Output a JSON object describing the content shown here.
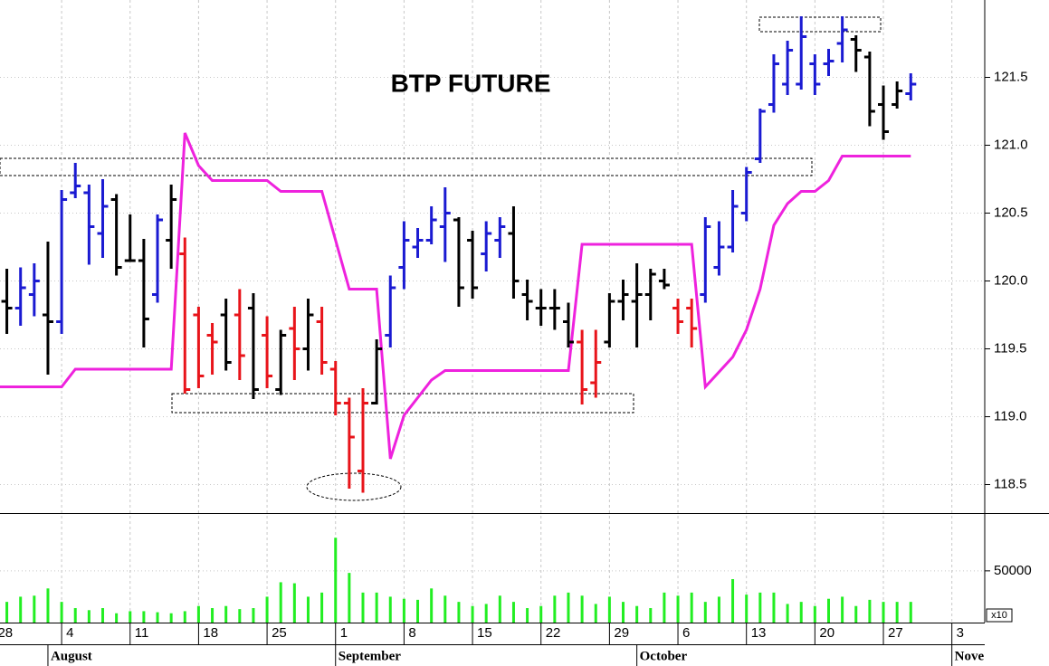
{
  "chart_data": {
    "type": "ohlc",
    "title": "BTP FUTURE",
    "x": [
      1,
      2,
      3,
      4,
      5,
      6,
      7,
      8,
      9,
      10,
      11,
      12,
      13,
      14,
      15,
      16,
      17,
      18,
      19,
      20,
      21,
      22,
      23,
      24,
      25,
      26,
      27,
      28,
      29,
      30,
      31,
      32,
      33,
      34,
      35,
      36,
      37,
      38,
      39,
      40,
      41,
      42,
      43,
      44,
      45,
      46,
      47,
      48,
      49,
      50,
      51,
      52,
      53,
      54,
      55,
      56,
      57,
      58,
      59,
      60,
      61,
      62,
      63,
      64,
      65,
      66,
      67
    ],
    "high": [
      120.09,
      120.1,
      120.13,
      120.29,
      120.67,
      120.87,
      120.71,
      120.75,
      120.64,
      120.49,
      120.31,
      120.49,
      120.71,
      120.32,
      119.81,
      119.69,
      119.87,
      119.94,
      119.91,
      119.74,
      119.64,
      119.81,
      119.87,
      119.81,
      119.41,
      119.14,
      119.21,
      119.57,
      120.04,
      120.44,
      120.39,
      120.55,
      120.69,
      120.47,
      120.37,
      120.44,
      120.47,
      120.55,
      120.01,
      119.94,
      119.94,
      119.84,
      119.64,
      119.64,
      119.91,
      120.01,
      120.13,
      120.09,
      120.09,
      119.87,
      119.87,
      120.47,
      120.44,
      120.67,
      120.84,
      121.27,
      121.67,
      121.77,
      121.95,
      121.67,
      121.71,
      121.95,
      121.81,
      121.69,
      121.44,
      121.47,
      121.53
    ],
    "low": [
      119.61,
      119.67,
      119.74,
      119.31,
      119.61,
      120.61,
      120.12,
      120.17,
      120.04,
      120.14,
      119.51,
      119.84,
      120.09,
      119.17,
      119.21,
      119.31,
      119.34,
      119.27,
      119.13,
      119.21,
      119.16,
      119.27,
      119.34,
      119.31,
      119.01,
      118.47,
      118.44,
      119.09,
      119.51,
      119.94,
      120.17,
      120.27,
      120.14,
      119.81,
      119.87,
      120.07,
      120.17,
      119.87,
      119.71,
      119.67,
      119.64,
      119.51,
      119.09,
      119.14,
      119.51,
      119.71,
      119.51,
      119.71,
      119.94,
      119.61,
      119.51,
      119.84,
      120.04,
      120.21,
      120.44,
      120.87,
      121.24,
      121.37,
      121.41,
      121.37,
      121.51,
      121.61,
      121.54,
      121.14,
      121.04,
      121.27,
      121.33
    ],
    "open": [
      119.85,
      119.8,
      119.9,
      119.75,
      119.7,
      120.65,
      120.65,
      120.35,
      120.6,
      120.15,
      120.15,
      119.9,
      120.3,
      120.2,
      119.75,
      119.6,
      119.75,
      119.75,
      119.8,
      119.6,
      119.2,
      119.65,
      119.5,
      119.7,
      119.35,
      119.1,
      118.6,
      119.1,
      119.6,
      120.1,
      120.25,
      120.3,
      120.4,
      120.45,
      120.3,
      120.2,
      120.3,
      120.35,
      119.9,
      119.8,
      119.8,
      119.7,
      119.55,
      119.25,
      119.55,
      119.85,
      119.85,
      119.9,
      120.0,
      119.8,
      119.8,
      119.9,
      120.1,
      120.25,
      120.5,
      120.9,
      121.3,
      121.45,
      121.45,
      121.6,
      121.6,
      121.75,
      121.78,
      121.65,
      121.3,
      121.3,
      121.38
    ],
    "close": [
      119.8,
      119.95,
      120.0,
      119.7,
      120.6,
      120.7,
      120.4,
      120.55,
      120.1,
      120.15,
      119.72,
      120.45,
      120.6,
      119.2,
      119.3,
      119.55,
      119.4,
      119.45,
      119.2,
      119.3,
      119.6,
      119.5,
      119.75,
      119.4,
      119.1,
      118.85,
      119.1,
      119.5,
      119.95,
      120.3,
      120.3,
      120.45,
      120.5,
      119.95,
      119.95,
      120.35,
      120.4,
      120.0,
      119.85,
      119.8,
      119.8,
      119.55,
      119.2,
      119.4,
      119.85,
      119.9,
      119.9,
      120.05,
      119.97,
      119.7,
      119.65,
      120.4,
      120.25,
      120.55,
      120.8,
      121.25,
      121.6,
      121.7,
      121.8,
      121.45,
      121.62,
      121.85,
      121.7,
      121.25,
      121.1,
      121.4,
      121.45
    ],
    "colors": [
      "#000000",
      "#1a1ad2",
      "#1a1ad2",
      "#000000",
      "#1a1ad2",
      "#1a1ad2",
      "#1a1ad2",
      "#1a1ad2",
      "#000000",
      "#000000",
      "#000000",
      "#1a1ad2",
      "#000000",
      "#e8141a",
      "#e8141a",
      "#e8141a",
      "#000000",
      "#e8141a",
      "#000000",
      "#e8141a",
      "#000000",
      "#e8141a",
      "#000000",
      "#e8141a",
      "#e8141a",
      "#e8141a",
      "#e8141a",
      "#000000",
      "#1a1ad2",
      "#1a1ad2",
      "#1a1ad2",
      "#1a1ad2",
      "#1a1ad2",
      "#000000",
      "#000000",
      "#1a1ad2",
      "#1a1ad2",
      "#000000",
      "#000000",
      "#000000",
      "#000000",
      "#000000",
      "#e8141a",
      "#e8141a",
      "#000000",
      "#000000",
      "#000000",
      "#000000",
      "#000000",
      "#e8141a",
      "#e8141a",
      "#1a1ad2",
      "#1a1ad2",
      "#1a1ad2",
      "#1a1ad2",
      "#1a1ad2",
      "#1a1ad2",
      "#1a1ad2",
      "#1a1ad2",
      "#1a1ad2",
      "#1a1ad2",
      "#1a1ad2",
      "#000000",
      "#000000",
      "#000000",
      "#000000",
      "#1a1ad2"
    ],
    "xlim": [
      0.5,
      72.4
    ],
    "ylim": [
      118.29,
      122.07
    ],
    "yticks": [
      118.5,
      {
        "value": 119,
        "label": "119.0"
      },
      119.5,
      {
        "value": 120,
        "label": "120.0"
      },
      120.5,
      {
        "value": 121,
        "label": "121.0"
      },
      121.5
    ],
    "xticks": [
      {
        "value": 0,
        "label": "28"
      },
      {
        "value": 5,
        "label": "4"
      },
      {
        "value": 10,
        "label": "11"
      },
      {
        "value": 15,
        "label": "18"
      },
      {
        "value": 20,
        "label": "25"
      },
      {
        "value": 25,
        "label": "1"
      },
      {
        "value": 30,
        "label": "8"
      },
      {
        "value": 35,
        "label": "15"
      },
      {
        "value": 40,
        "label": "22"
      },
      {
        "value": 45,
        "label": "29"
      },
      {
        "value": 50,
        "label": "6"
      },
      {
        "value": 55,
        "label": "13"
      },
      {
        "value": 60,
        "label": "20"
      },
      {
        "value": 65,
        "label": "27"
      },
      {
        "value": 70,
        "label": "3"
      }
    ],
    "months": [
      {
        "value": 4,
        "label": "August"
      },
      {
        "value": 25,
        "label": "September"
      },
      {
        "value": 47,
        "label": "October"
      },
      {
        "value": 70,
        "label": "Nove"
      }
    ],
    "grid": true,
    "stop_line": {
      "color": "#ee22dd",
      "x": [
        0.5,
        5,
        6,
        13,
        14,
        15,
        16,
        20,
        21,
        24,
        26,
        28,
        29,
        30,
        32,
        33,
        42,
        43,
        51,
        52,
        54,
        55,
        56,
        57,
        58,
        59,
        60,
        61,
        62,
        67
      ],
      "values": [
        119.22,
        119.22,
        119.35,
        119.35,
        121.09,
        120.85,
        120.74,
        120.74,
        120.66,
        120.66,
        119.94,
        119.94,
        118.69,
        119.01,
        119.27,
        119.34,
        119.34,
        120.27,
        120.27,
        119.22,
        119.44,
        119.64,
        119.94,
        120.41,
        120.57,
        120.66,
        120.66,
        120.74,
        120.92,
        120.92
      ]
    },
    "volume": {
      "type": "bar",
      "color": "#22ee22",
      "note": "x10",
      "values": [
        20000,
        25000,
        26000,
        33000,
        20000,
        14000,
        12000,
        14000,
        9000,
        11000,
        11000,
        10000,
        9000,
        11000,
        16000,
        14000,
        16000,
        13000,
        14000,
        25000,
        39000,
        38000,
        25000,
        29000,
        82000,
        48000,
        29000,
        29000,
        25000,
        23000,
        22000,
        33000,
        26000,
        20000,
        16000,
        18000,
        26000,
        20000,
        14000,
        16000,
        26000,
        29000,
        26000,
        18000,
        25000,
        20000,
        16000,
        14000,
        29000,
        26000,
        29000,
        20000,
        25000,
        42000,
        27000,
        29000,
        29000,
        18000,
        20000,
        16000,
        23000,
        25000,
        16000,
        22000,
        20000,
        20000,
        20000
      ],
      "ylim": [
        0,
        105000
      ],
      "yticks": [
        50000
      ]
    }
  }
}
